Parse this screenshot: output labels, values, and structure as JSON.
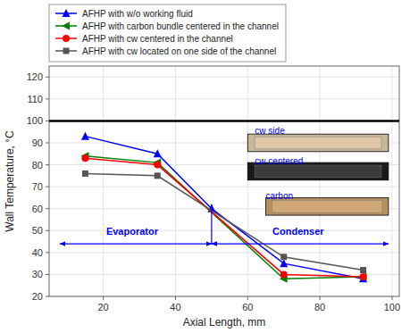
{
  "chart_data": {
    "type": "line",
    "xlabel": "Axial Length, mm",
    "ylabel": "Wall Temperature, °C",
    "xlim": [
      5,
      102
    ],
    "ylim": [
      20,
      125
    ],
    "xticks": [
      20,
      40,
      60,
      80,
      100
    ],
    "yticks": [
      20,
      30,
      40,
      50,
      60,
      70,
      80,
      90,
      100,
      110,
      120
    ],
    "grid": true,
    "legend": "top",
    "series": [
      {
        "name": "AFHP with w/o working fluid",
        "color": "blue",
        "marker": "triangle-up",
        "x": [
          15,
          35,
          50,
          70,
          92
        ],
        "values": [
          93,
          85,
          60,
          35,
          28
        ]
      },
      {
        "name": "AFHP with carbon bundle centered in the channel",
        "color": "green",
        "marker": "triangle-left",
        "x": [
          15,
          35,
          70,
          92
        ],
        "values": [
          84,
          81,
          28,
          29
        ]
      },
      {
        "name": "AFHP with cw centered in the channel",
        "color": "red",
        "marker": "circle",
        "x": [
          15,
          35,
          70,
          92
        ],
        "values": [
          83,
          80,
          30,
          29
        ]
      },
      {
        "name": "AFHP with cw located on one side of the channel",
        "color": "#555555",
        "marker": "square",
        "x": [
          15,
          35,
          70,
          92
        ],
        "values": [
          76,
          75,
          38,
          32
        ]
      }
    ],
    "lines": [
      {
        "y": 100,
        "color": "black"
      },
      {
        "x": 50,
        "y": [
          44,
          62
        ],
        "color": "blue"
      }
    ],
    "annotations": [
      {
        "text": "Evaporator",
        "x": 28,
        "y": 47,
        "color": "blue",
        "arrow": {
          "x": [
            8,
            50
          ],
          "y": 44
        }
      },
      {
        "text": "Condenser",
        "x": 74,
        "y": 47,
        "color": "blue",
        "arrow": {
          "x": [
            50,
            99
          ],
          "y": 44
        }
      },
      {
        "text": "cw side",
        "x": 62,
        "y": 93,
        "color": "blue",
        "image": {
          "x": [
            60,
            99
          ],
          "y": [
            86,
            94
          ],
          "colors": [
            "#c8b89a",
            "#e0c8a8"
          ]
        }
      },
      {
        "text": "cw centered",
        "x": 62,
        "y": 79,
        "color": "blue",
        "image": {
          "x": [
            60,
            99
          ],
          "y": [
            73,
            81
          ],
          "colors": [
            "#1a1a1a",
            "#3a3a3a"
          ]
        }
      },
      {
        "text": "carbon",
        "x": 65,
        "y": 63,
        "color": "blue",
        "image": {
          "x": [
            65,
            99
          ],
          "y": [
            57,
            65
          ],
          "colors": [
            "#b89060",
            "#d0a878"
          ]
        }
      }
    ]
  }
}
